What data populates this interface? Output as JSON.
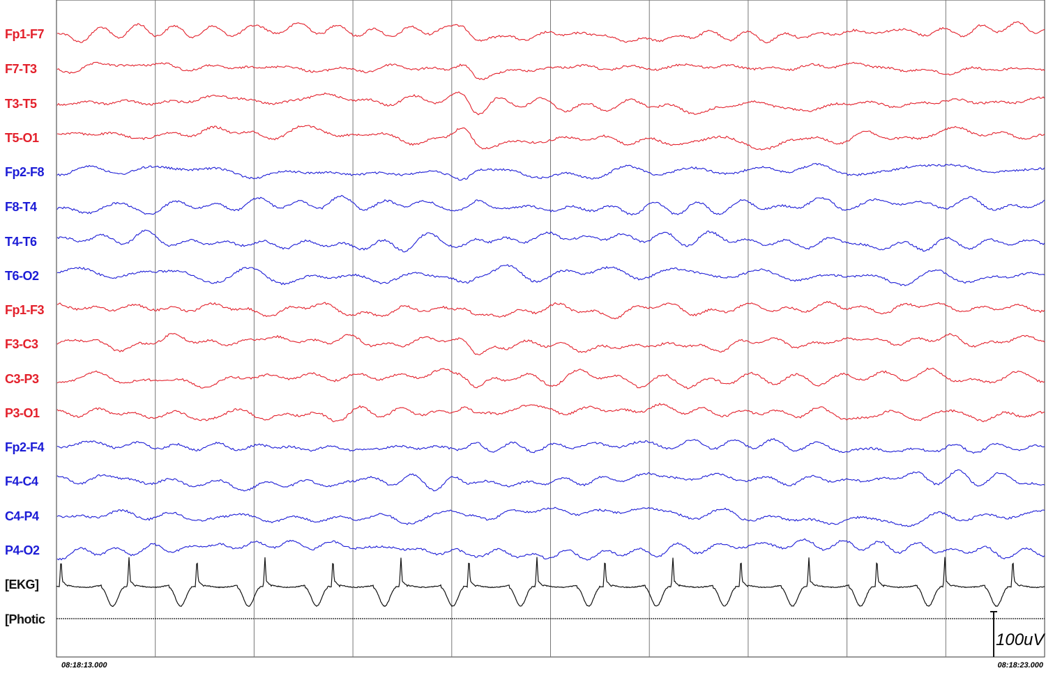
{
  "channels": [
    {
      "label": "Fp1-F7",
      "color": "#e3202b"
    },
    {
      "label": "F7-T3",
      "color": "#e3202b"
    },
    {
      "label": "T3-T5",
      "color": "#e3202b"
    },
    {
      "label": "T5-O1",
      "color": "#e3202b"
    },
    {
      "label": "Fp2-F8",
      "color": "#1c1cd6"
    },
    {
      "label": "F8-T4",
      "color": "#1c1cd6"
    },
    {
      "label": "T4-T6",
      "color": "#1c1cd6"
    },
    {
      "label": "T6-O2",
      "color": "#1c1cd6"
    },
    {
      "label": "Fp1-F3",
      "color": "#e3202b"
    },
    {
      "label": "F3-C3",
      "color": "#e3202b"
    },
    {
      "label": "C3-P3",
      "color": "#e3202b"
    },
    {
      "label": "P3-O1",
      "color": "#e3202b"
    },
    {
      "label": "Fp2-F4",
      "color": "#1c1cd6"
    },
    {
      "label": "F4-C4",
      "color": "#1c1cd6"
    },
    {
      "label": "C4-P4",
      "color": "#1c1cd6"
    },
    {
      "label": "P4-O2",
      "color": "#1c1cd6"
    },
    {
      "label": "[EKG]",
      "color": "#111111"
    },
    {
      "label": "[Photic",
      "color": "#111111"
    }
  ],
  "start_time": "08:18:13.000",
  "end_time": "08:18:23.000",
  "scale_label": "100uV"
}
